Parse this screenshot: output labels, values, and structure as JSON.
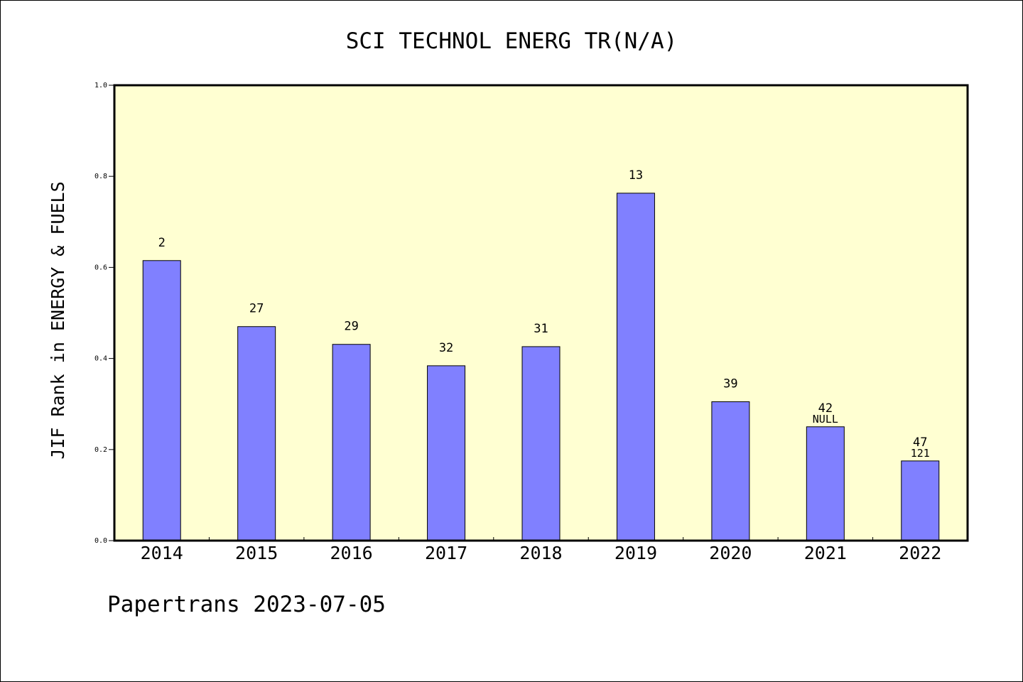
{
  "footer": {
    "text": "Papertrans 2023-07-05"
  },
  "colors": {
    "plot_background": "#ffffd2",
    "bar_fill": "#8080ff",
    "bar_stroke": "#000000",
    "axis": "#000000"
  },
  "chart_data": {
    "type": "bar",
    "title": "SCI TECHNOL ENERG TR(N/A)",
    "xlabel": "",
    "ylabel": "JIF Rank in ENERGY & FUELS",
    "ylim": [
      0,
      1.0
    ],
    "yticks": [
      "0.0",
      "0.2",
      "0.4",
      "0.6",
      "0.8",
      "1.0"
    ],
    "grid": false,
    "categories": [
      "2014",
      "2015",
      "2016",
      "2017",
      "2018",
      "2019",
      "2020",
      "2021",
      "2022"
    ],
    "values": [
      0.615,
      0.47,
      0.431,
      0.384,
      0.426,
      0.763,
      0.305,
      0.25,
      0.175
    ],
    "bar_labels": [
      "2",
      "27",
      "29",
      "32",
      "31",
      "13",
      "39",
      "42",
      "47"
    ],
    "secondary_labels": [
      "",
      "",
      "",
      "",
      "",
      "",
      "",
      "NULL",
      "121"
    ]
  }
}
